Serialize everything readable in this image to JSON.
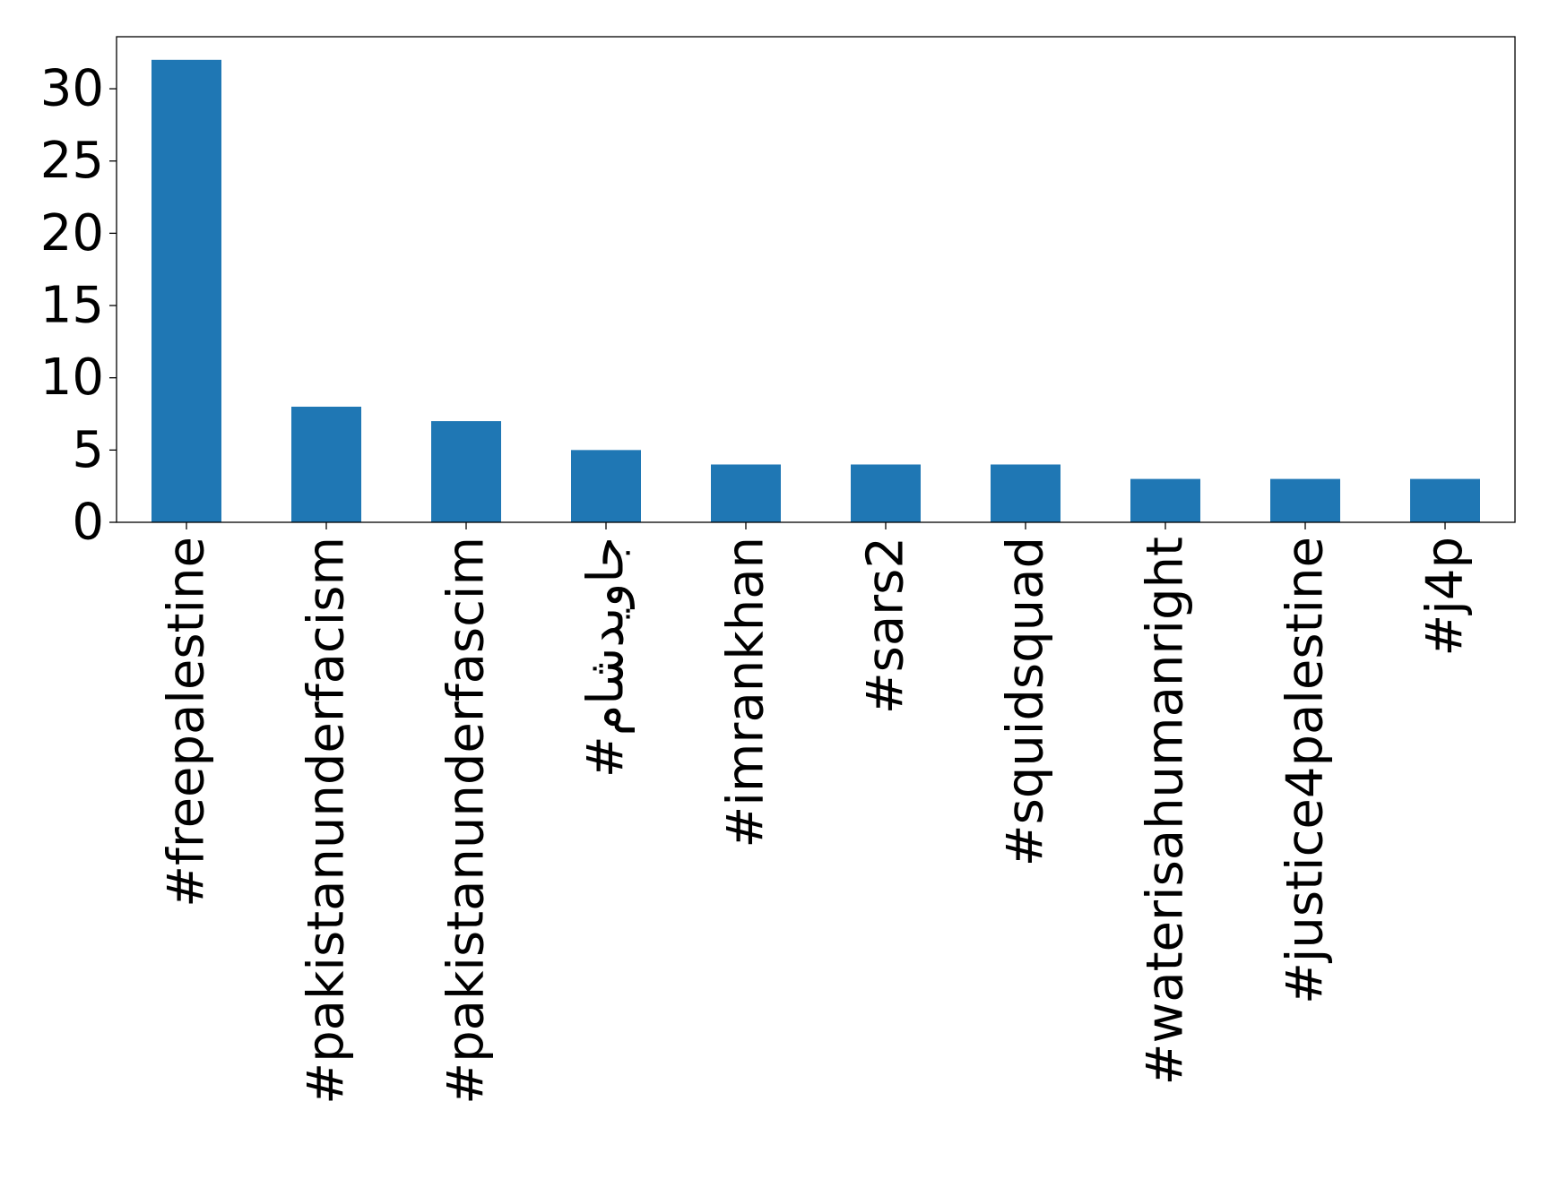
{
  "chart_data": {
    "type": "bar",
    "title": "",
    "xlabel": "",
    "ylabel": "",
    "categories": [
      "#freepalestine",
      "#pakistanunderfacism",
      "#pakistanunderfascim",
      "#جاویدشام",
      "#imrankhan",
      "#sars2",
      "#squidsquad",
      "#waterisahumanright",
      "#justice4palestine",
      "#j4p"
    ],
    "values": [
      32,
      8,
      7,
      5,
      4,
      4,
      4,
      3,
      3,
      3
    ],
    "ylim": [
      0,
      33.6
    ],
    "yticks": [
      0,
      5,
      10,
      15,
      20,
      25,
      30
    ],
    "grid": false,
    "legend": "none",
    "colors": {
      "bar": "#1f77b4",
      "axis": "#000000",
      "background": "#ffffff"
    }
  }
}
